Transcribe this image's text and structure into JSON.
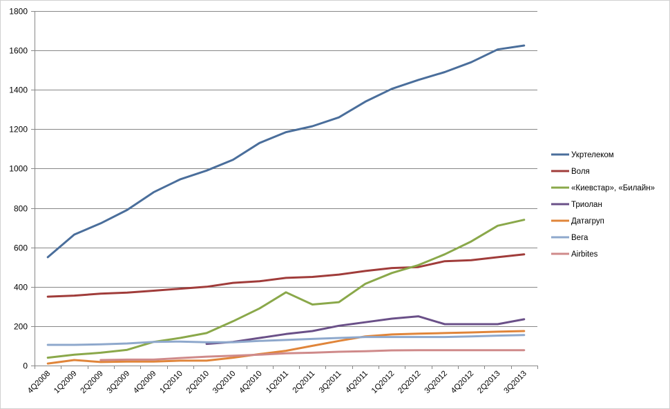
{
  "chart_data": {
    "type": "line",
    "title": "",
    "xlabel": "",
    "ylabel": "",
    "ylim": [
      0,
      1800
    ],
    "yticks": [
      0,
      200,
      400,
      600,
      800,
      1000,
      1200,
      1400,
      1600,
      1800
    ],
    "grid": true,
    "legend_position": "right",
    "categories": [
      "4Q2008",
      "1Q2009",
      "2Q2009",
      "3Q2009",
      "4Q2009",
      "1Q2010",
      "2Q2010",
      "3Q2010",
      "4Q2010",
      "1Q2011",
      "2Q2011",
      "3Q2011",
      "4Q2011",
      "1Q2012",
      "2Q2012",
      "3Q2012",
      "4Q2012",
      "2Q2013",
      "3Q2013"
    ],
    "series": [
      {
        "name": "Укртелеком",
        "color": "#4a6e9b",
        "values": [
          550,
          665,
          722,
          790,
          880,
          945,
          990,
          1045,
          1130,
          1185,
          1215,
          1260,
          1340,
          1405,
          1450,
          1490,
          1540,
          1605,
          1625
        ]
      },
      {
        "name": "Воля",
        "color": "#a03c3a",
        "values": [
          350,
          355,
          365,
          370,
          380,
          390,
          400,
          420,
          428,
          445,
          450,
          462,
          480,
          495,
          500,
          530,
          535,
          550,
          565
        ]
      },
      {
        "name": "«Киевстар», «Билайн»",
        "color": "#8aa84a",
        "values": [
          40,
          55,
          65,
          80,
          120,
          140,
          165,
          225,
          290,
          372,
          310,
          322,
          415,
          470,
          510,
          565,
          630,
          710,
          740
        ]
      },
      {
        "name": "Триолан",
        "color": "#6a5088",
        "values": [
          null,
          null,
          null,
          null,
          null,
          null,
          110,
          120,
          140,
          160,
          175,
          202,
          220,
          238,
          250,
          210,
          210,
          210,
          235
        ]
      },
      {
        "name": "Датагруп",
        "color": "#e0853a",
        "values": [
          10,
          28,
          18,
          20,
          20,
          25,
          25,
          40,
          58,
          75,
          100,
          125,
          148,
          158,
          162,
          165,
          168,
          172,
          175
        ]
      },
      {
        "name": "Вега",
        "color": "#8ea8cc",
        "values": [
          105,
          105,
          108,
          112,
          120,
          122,
          118,
          118,
          125,
          130,
          135,
          140,
          145,
          145,
          145,
          145,
          148,
          152,
          155
        ]
      },
      {
        "name": "Airbites",
        "color": "#cf8a8a",
        "values": [
          null,
          null,
          28,
          30,
          30,
          38,
          45,
          50,
          55,
          62,
          65,
          70,
          73,
          77,
          78,
          78,
          78,
          78,
          78
        ]
      }
    ]
  }
}
